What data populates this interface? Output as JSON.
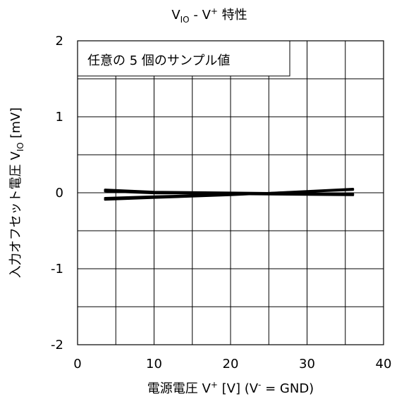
{
  "chart_data": {
    "type": "line",
    "title": {
      "main": "V",
      "sub": "IO",
      "rest": " - V",
      "sup": "+",
      "tail": " 特性"
    },
    "annotation": "任意の 5 個のサンプル値",
    "xlabel": {
      "prefix": "電源電圧 V",
      "sup1": "+",
      "mid": " [V] (V",
      "sup2": "-",
      "suffix": " = GND)"
    },
    "ylabel": {
      "prefix": "入力オフセット電圧 V",
      "sub": "IO",
      "suffix": " [mV]"
    },
    "xlim": [
      0,
      40
    ],
    "ylim": [
      -2,
      2
    ],
    "x_ticks": [
      "0",
      "10",
      "20",
      "30",
      "40"
    ],
    "y_ticks": [
      "2",
      "1",
      "0",
      "-1",
      "-2"
    ],
    "x_gridlines": [
      5,
      10,
      15,
      20,
      25,
      30,
      35
    ],
    "y_gridlines": [
      -1.5,
      -1,
      -0.5,
      0,
      0.5,
      1,
      1.5
    ],
    "grid": true,
    "line_color": "#000000",
    "series": [
      {
        "x": [
          3.6,
          10,
          20,
          30,
          36
        ],
        "y": [
          -0.09,
          -0.065,
          -0.03,
          0.02,
          0.05
        ]
      },
      {
        "x": [
          3.6,
          10,
          20,
          30,
          36
        ],
        "y": [
          -0.07,
          -0.05,
          -0.025,
          0.015,
          0.04
        ]
      },
      {
        "x": [
          3.6,
          10,
          20,
          30,
          36
        ],
        "y": [
          0.03,
          0.0,
          -0.015,
          -0.025,
          -0.03
        ]
      },
      {
        "x": [
          3.6,
          10,
          20,
          30,
          36
        ],
        "y": [
          0.02,
          -0.005,
          -0.01,
          -0.02,
          -0.02
        ]
      },
      {
        "x": [
          3.6,
          10,
          20,
          30,
          36
        ],
        "y": [
          0.04,
          0.01,
          0.0,
          -0.01,
          -0.015
        ]
      }
    ]
  }
}
